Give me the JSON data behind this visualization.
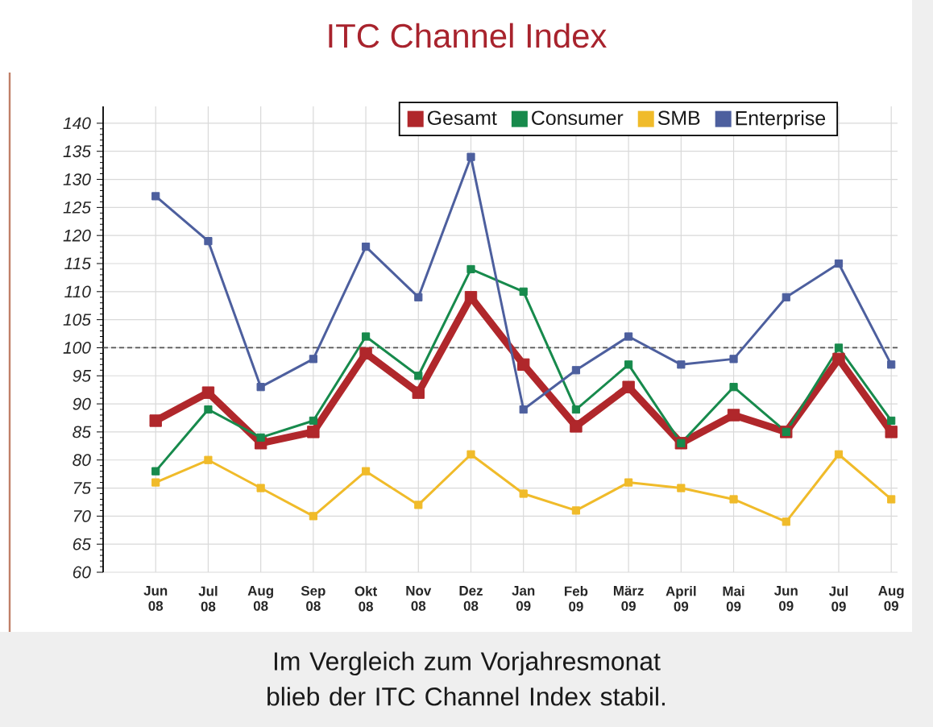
{
  "chart_data": {
    "type": "line",
    "title": "ITC Channel Index",
    "annotations": [
      "Im Vergleich zum Vorjahresmonat blieb der ITC Channel Index stabil."
    ],
    "categories": [
      "Jun 08",
      "Jul 08",
      "Aug 08",
      "Sep 08",
      "Okt 08",
      "Nov 08",
      "Dez 08",
      "Jan 09",
      "Feb 09",
      "März 09",
      "April 09",
      "Mai 09",
      "Jun 09",
      "Jul 09",
      "Aug 09"
    ],
    "series": [
      {
        "name": "Gesamt",
        "color": "#b0272b",
        "values": [
          87,
          92,
          83,
          85,
          99,
          92,
          109,
          97,
          86,
          93,
          83,
          88,
          85,
          98,
          85
        ]
      },
      {
        "name": "Consumer",
        "color": "#178a4c",
        "values": [
          78,
          89,
          84,
          87,
          102,
          95,
          114,
          110,
          89,
          97,
          83,
          93,
          85,
          100,
          87
        ]
      },
      {
        "name": "SMB",
        "color": "#f0bb2a",
        "values": [
          76,
          80,
          75,
          70,
          78,
          72,
          81,
          74,
          71,
          76,
          75,
          73,
          69,
          81,
          73
        ]
      },
      {
        "name": "Enterprise",
        "color": "#4d5f9e",
        "values": [
          127,
          119,
          93,
          98,
          118,
          109,
          134,
          89,
          96,
          102,
          97,
          98,
          109,
          115,
          97
        ]
      }
    ],
    "ylim": [
      60,
      143
    ],
    "yticks": [
      60,
      65,
      70,
      75,
      80,
      85,
      90,
      95,
      100,
      105,
      110,
      115,
      120,
      125,
      130,
      135,
      140
    ],
    "grid": true,
    "legend": "top right",
    "marker": "square",
    "line_style": "solid",
    "ref_lines": [
      {
        "axis": "y",
        "value": 100,
        "color": "#555555",
        "line_style": "dashed"
      }
    ]
  }
}
